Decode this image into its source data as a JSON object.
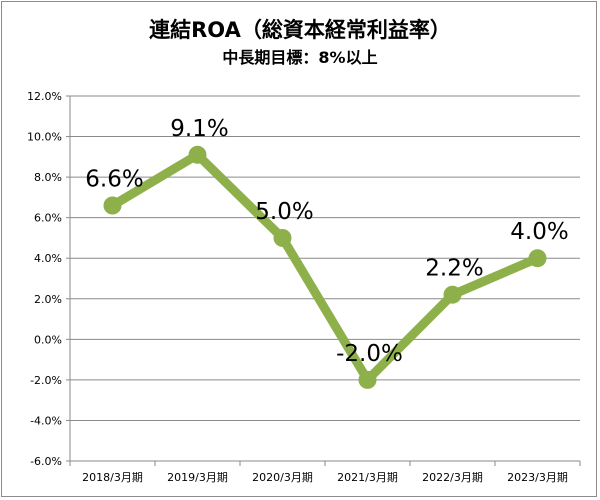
{
  "chart_data": {
    "type": "line",
    "title": "連結ROA（総資本経常利益率）",
    "subtitle": "中長期目標：8%以上",
    "categories": [
      "2018/3月期",
      "2019/3月期",
      "2020/3月期",
      "2021/3月期",
      "2022/3月期",
      "2023/3月期"
    ],
    "series": [
      {
        "values": [
          6.6,
          9.1,
          5.0,
          -2.0,
          2.2,
          4.0
        ],
        "color": "#8db04b"
      }
    ],
    "data_labels": [
      "6.6%",
      "9.1%",
      "5.0%",
      "-2.0%",
      "2.2%",
      "4.0%"
    ],
    "y_ticks": [
      "12.0%",
      "10.0%",
      "8.0%",
      "6.0%",
      "4.0%",
      "2.0%",
      "0.0%",
      "-2.0%",
      "-4.0%",
      "-6.0%"
    ],
    "ylim": [
      -6,
      12
    ],
    "grid": true,
    "legend": "none",
    "xlabel": "",
    "ylabel": ""
  }
}
